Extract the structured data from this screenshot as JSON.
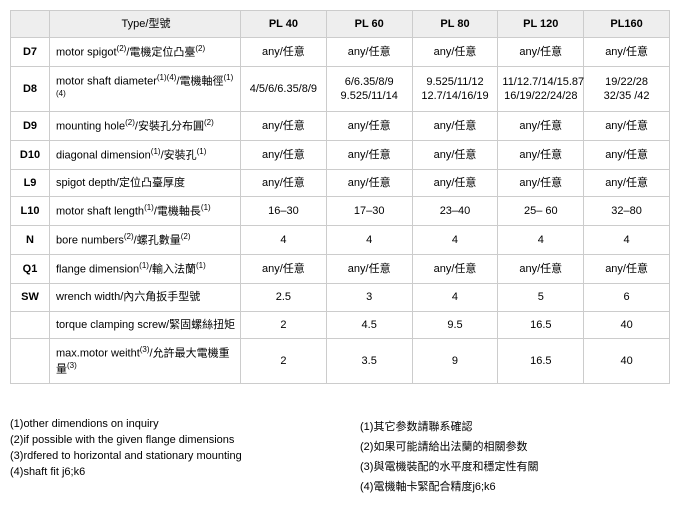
{
  "table": {
    "header": [
      "",
      "Type/型號",
      "PL 40",
      "PL 60",
      "PL 80",
      "PL 120",
      "PL160"
    ],
    "rows": [
      {
        "code": "D7",
        "desc": "motor spigot<sup>(2)</sup>/電機定位凸臺<sup>(2)</sup>",
        "cells": [
          "any/任意",
          "any/任意",
          "any/任意",
          "any/任意",
          "any/任意"
        ]
      },
      {
        "code": "D8",
        "desc": "motor shaft diameter<sup>(1)(4)</sup>/電機軸徑<sup>(1)(4)</sup>",
        "cells": [
          "4/5/6/6.35/8/9",
          "6/6.35/8/9\n9.525/11/14",
          "9.525/11/12\n12.7/14/16/19",
          "11/12.7/14/15.87\n16/19/22/24/28",
          "19/22/28\n32/35 /42"
        ]
      },
      {
        "code": "D9",
        "desc": "mounting hole<sup>(2)</sup>/安裝孔分布圓<sup>(2)</sup>",
        "cells": [
          "any/任意",
          "any/任意",
          "any/任意",
          "any/任意",
          "any/任意"
        ]
      },
      {
        "code": "D10",
        "desc": "diagonal dimension<sup>(1)</sup>/安裝孔<sup>(1)</sup>",
        "cells": [
          "any/任意",
          "any/任意",
          "any/任意",
          "any/任意",
          "any/任意"
        ]
      },
      {
        "code": "L9",
        "desc": "spigot depth/定位凸臺厚度",
        "cells": [
          "any/任意",
          "any/任意",
          "any/任意",
          "any/任意",
          "any/任意"
        ]
      },
      {
        "code": "L10",
        "desc": "motor shaft length<sup>(1)</sup>/電機軸長<sup>(1)</sup>",
        "cells": [
          "16–30",
          "17–30",
          "23–40",
          "25– 60",
          "32–80"
        ]
      },
      {
        "code": "N",
        "desc": "bore numbers<sup>(2)</sup>/螺孔數量<sup>(2)</sup>",
        "cells": [
          "4",
          "4",
          "4",
          "4",
          "4"
        ]
      },
      {
        "code": "Q1",
        "desc": "flange dimension<sup>(1)</sup>/輸入法蘭<sup>(1)</sup>",
        "cells": [
          "any/任意",
          "any/任意",
          "any/任意",
          "any/任意",
          "any/任意"
        ]
      },
      {
        "code": "SW",
        "desc": "wrench width/內六角扳手型號",
        "cells": [
          "2.5",
          "3",
          "4",
          "5",
          "6"
        ]
      },
      {
        "code": "",
        "desc": "torque clamping screw/緊固螺絲扭矩",
        "cells": [
          "2",
          "4.5",
          "9.5",
          "16.5",
          "40"
        ]
      },
      {
        "code": "",
        "desc": "max.motor weitht<sup>(3)</sup>/允許最大電機重量<sup>(3)</sup>",
        "cells": [
          "2",
          "3.5",
          "9",
          "16.5",
          "40"
        ]
      }
    ]
  },
  "footnotes": {
    "left": [
      "(1)other dimendions on inquiry",
      "(2)if possible with the given flange dimensions",
      "(3)rdfered to horizontal and stationary mounting",
      "(4)shaft fit j6;k6"
    ],
    "right": [
      "(1)其它参数請聯系確認",
      "(2)如果可能請給出法蘭的相關参数",
      "(3)與電機裝配的水平度和穩定性有關",
      "(4)電機軸卡緊配合精度j6;k6"
    ]
  }
}
